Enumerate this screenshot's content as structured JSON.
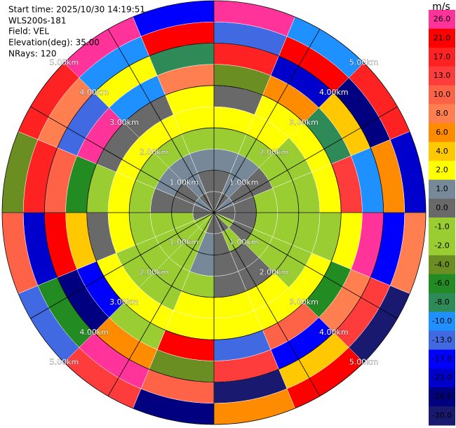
{
  "chart_data": {
    "type": "ppi",
    "annotations": [
      "Start time: 2025/10/30 14:19:51",
      "WLS200s-181",
      "Field: VEL",
      "Elevation(deg): 35.00",
      "NRays: 120"
    ],
    "rlim": [
      0,
      5
    ],
    "range_rings": [
      {
        "value": 1,
        "label": "1.00km"
      },
      {
        "value": 2,
        "label": "2.00km"
      },
      {
        "value": 3,
        "label": "3.00km"
      },
      {
        "value": 4,
        "label": "4.00km"
      },
      {
        "value": 5,
        "label": "5.00km"
      }
    ],
    "azimuths": [
      0,
      22.5,
      45,
      67.5,
      90,
      112.5,
      135,
      157.5,
      180,
      202.5,
      225,
      247.5,
      270,
      292.5,
      315,
      337.5
    ],
    "ranges": [
      0,
      0.5,
      1,
      1.5,
      2,
      2.5,
      3,
      3.5,
      4,
      4.5,
      5
    ],
    "values": [
      [
        0,
        0,
        1,
        0,
        0,
        -1,
        0,
        0,
        0,
        -1,
        -1,
        0,
        0,
        1,
        0,
        0
      ],
      [
        0,
        1,
        0,
        0,
        0,
        0,
        -1,
        0,
        1,
        -1,
        -2,
        -1,
        0,
        0,
        1,
        0
      ],
      [
        1,
        1,
        0,
        -2,
        -2,
        -1,
        0,
        0,
        1,
        -2,
        -2,
        -2,
        0,
        1,
        1,
        1
      ],
      [
        -2,
        -1,
        -1,
        -2,
        -2,
        -2,
        0,
        0,
        -2,
        -2,
        -2,
        -2,
        -2,
        -2,
        -2,
        -1
      ],
      [
        2,
        2,
        -2,
        -2,
        -2,
        -2,
        2,
        2,
        2,
        -1,
        -2,
        2,
        2,
        2,
        2,
        2
      ],
      [
        0,
        2,
        2,
        2,
        -2,
        2,
        2,
        2,
        2,
        2,
        2,
        0,
        -2,
        0,
        0,
        2
      ],
      [
        -4,
        6,
        -8,
        13,
        2,
        -6,
        10,
        -13,
        21,
        -2,
        -17,
        4,
        -6,
        26,
        -10,
        8
      ],
      [
        17,
        -21,
        4,
        -10,
        26,
        8,
        -17,
        13,
        -4,
        6,
        -26,
        21,
        10,
        -13,
        2,
        -8
      ],
      [
        -13,
        21,
        -26,
        6,
        -17,
        13,
        4,
        -30,
        10,
        26,
        -6,
        -21,
        17,
        8,
        -10,
        21
      ],
      [
        26,
        -10,
        17,
        -21,
        8,
        -30,
        21,
        6,
        -26,
        13,
        -13,
        10,
        -4,
        17,
        26,
        -17
      ]
    ],
    "colorbar": {
      "label": "m/s",
      "ticks": [
        {
          "value": 26,
          "label": "26.0"
        },
        {
          "value": 21,
          "label": "21.0"
        },
        {
          "value": 17,
          "label": "17.0"
        },
        {
          "value": 13,
          "label": "13.0"
        },
        {
          "value": 10,
          "label": "10.0"
        },
        {
          "value": 8,
          "label": "8.0"
        },
        {
          "value": 6,
          "label": "6.0"
        },
        {
          "value": 4,
          "label": "4.0"
        },
        {
          "value": 2,
          "label": "2.0"
        },
        {
          "value": 1,
          "label": "1.0"
        },
        {
          "value": 0,
          "label": "0.0"
        },
        {
          "value": -1,
          "label": "-1.0"
        },
        {
          "value": -2,
          "label": "-2.0"
        },
        {
          "value": -4,
          "label": "-4.0"
        },
        {
          "value": -6,
          "label": "-6.0"
        },
        {
          "value": -8,
          "label": "-8.0"
        },
        {
          "value": -10,
          "label": "-10.0"
        },
        {
          "value": -13,
          "label": "-13.0"
        },
        {
          "value": -17,
          "label": "-17.0"
        },
        {
          "value": -21,
          "label": "-21.0"
        },
        {
          "value": -26,
          "label": "-26.0"
        },
        {
          "value": -30,
          "label": "-30.0"
        }
      ],
      "colors": [
        "#ff3399",
        "#ff0000",
        "#ff2222",
        "#ff3c3c",
        "#ff6347",
        "#ff7f50",
        "#ff8c00",
        "#ffc800",
        "#ffff00",
        "#778899",
        "#696969",
        "#9acd32",
        "#9acd32",
        "#6b8e23",
        "#228b22",
        "#2e8b57",
        "#1e90ff",
        "#4169e1",
        "#0000ff",
        "#0000cd",
        "#000080",
        "#191970"
      ]
    }
  }
}
